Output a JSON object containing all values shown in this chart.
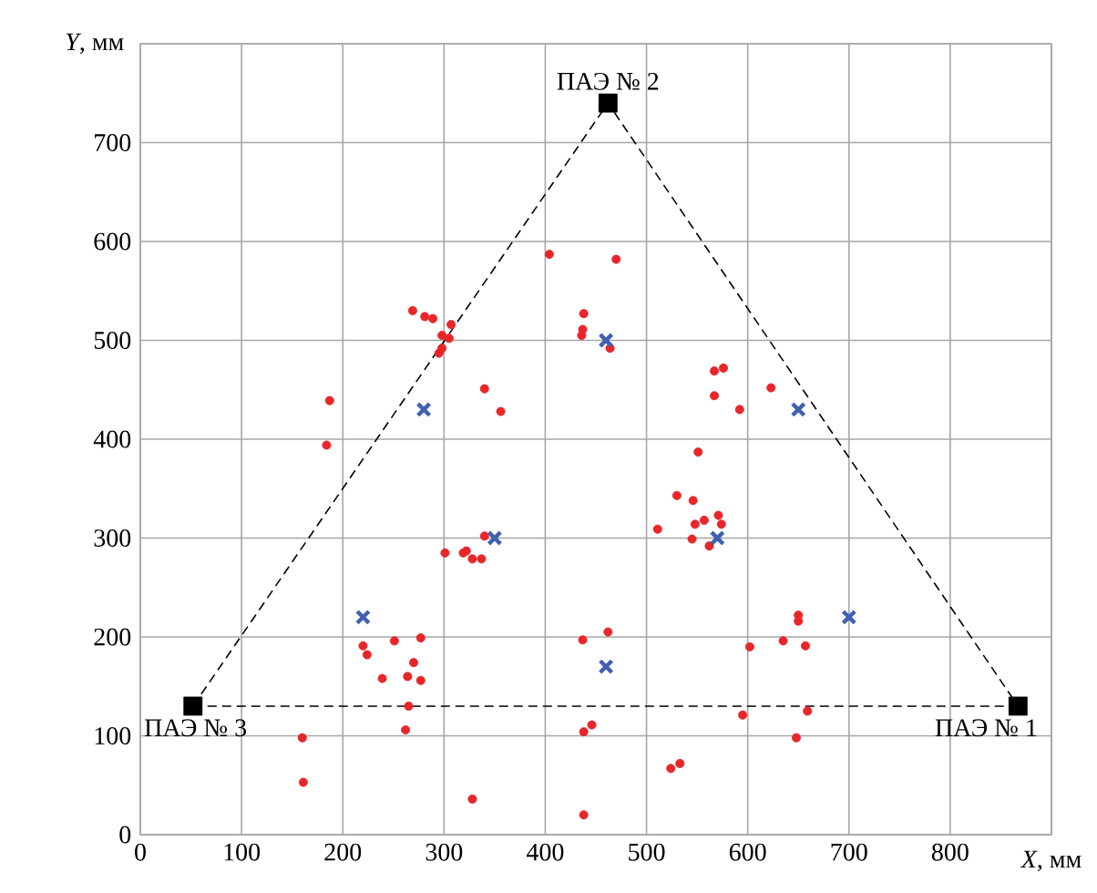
{
  "chart_data": {
    "type": "scatter",
    "xlabel": "*X*, мм",
    "ylabel": "*Y*, мм",
    "xlim": [
      0,
      900
    ],
    "ylim": [
      0,
      800
    ],
    "xticks": [
      0,
      100,
      200,
      300,
      400,
      500,
      600,
      700,
      800,
      {
        "value": 900,
        "label": null
      }
    ],
    "yticks": [
      0,
      100,
      200,
      300,
      400,
      500,
      600,
      700,
      {
        "value": 800,
        "label": null
      }
    ],
    "grid": true,
    "series": [
      {
        "marker": "circle",
        "color": "#e8262a",
        "x": [
          404,
          470,
          438,
          437,
          436,
          464,
          567,
          576,
          567,
          592,
          623,
          551,
          530,
          546,
          571,
          574,
          548,
          557,
          511,
          545,
          562,
          187,
          184,
          269,
          281,
          289,
          307,
          298,
          305,
          298,
          295,
          340,
          356,
          301,
          319,
          322,
          328,
          337,
          340,
          220,
          224,
          251,
          277,
          270,
          239,
          264,
          277,
          265,
          262,
          160,
          161,
          328,
          437,
          462,
          438,
          446,
          438,
          524,
          533,
          602,
          635,
          657,
          650,
          650,
          595,
          659,
          648
        ],
        "values": [
          587,
          582,
          527,
          511,
          505,
          492,
          469,
          472,
          444,
          430,
          452,
          387,
          343,
          338,
          323,
          314,
          314,
          318,
          309,
          299,
          292,
          439,
          394,
          530,
          524,
          522,
          516,
          505,
          502,
          492,
          487,
          451,
          428,
          285,
          285,
          287,
          279,
          279,
          302,
          191,
          182,
          196,
          199,
          174,
          158,
          160,
          156,
          130,
          106,
          98,
          53,
          36,
          197,
          205,
          104,
          111,
          20,
          67,
          72,
          190,
          196,
          191,
          222,
          216,
          121,
          125,
          98
        ]
      },
      {
        "marker": "cross",
        "color": "#4060b0",
        "x": [
          220,
          280,
          350,
          460,
          460,
          570,
          650,
          700
        ],
        "values": [
          220,
          430,
          300,
          500,
          170,
          300,
          430,
          220
        ]
      },
      {
        "type": "line",
        "marker": "none",
        "line_style": "dashed",
        "color": "#000000",
        "x": [
          52,
          462,
          867
        ],
        "values": [
          130,
          740,
          130
        ]
      },
      {
        "type": "line",
        "marker": "none",
        "line_style": "dashed",
        "color": "#000000",
        "x": [
          52,
          867
        ],
        "values": [
          130,
          130
        ]
      },
      {
        "type": "scatter",
        "marker": "square",
        "color": "#000000",
        "x": [
          867,
          462,
          52
        ],
        "values": [
          130,
          740,
          130
        ]
      }
    ],
    "annotations": [
      {
        "text": "ПАЭ № 1",
        "x": 867,
        "y": 130
      },
      {
        "text": "ПАЭ № 2",
        "x": 462,
        "y": 740
      },
      {
        "text": "ПАЭ № 3",
        "x": 52,
        "y": 130
      }
    ]
  }
}
